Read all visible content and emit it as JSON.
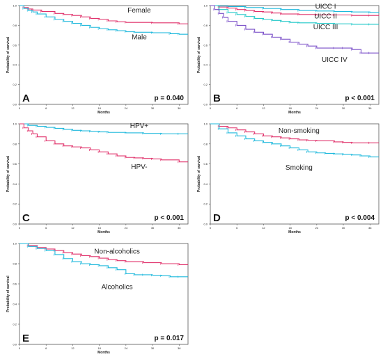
{
  "colors": {
    "pink": "#e0306a",
    "cyan": "#1cb8dc",
    "purple": "#7a4fc8"
  },
  "chart_data": [
    {
      "type": "line",
      "letter": "A",
      "p_value": "p = 0.040",
      "xlabel": "Months",
      "ylabel": "Probability of survival",
      "xlim": [
        0,
        38
      ],
      "ylim": [
        0,
        1
      ],
      "x_ticks": [
        "0",
        "6",
        "12",
        "18",
        "24",
        "30",
        "36"
      ],
      "y_ticks": [
        "0.0",
        "0.2",
        "0.4",
        "0.6",
        "0.8",
        "1.0"
      ],
      "series": [
        {
          "name": "Female",
          "color": "#e0306a",
          "x": [
            0,
            1,
            2,
            3,
            5,
            8,
            10,
            12,
            14,
            16,
            18,
            20,
            22,
            24,
            30,
            36,
            38
          ],
          "y": [
            1.0,
            0.98,
            0.965,
            0.955,
            0.94,
            0.92,
            0.91,
            0.9,
            0.885,
            0.87,
            0.86,
            0.845,
            0.835,
            0.83,
            0.825,
            0.815,
            0.815
          ]
        },
        {
          "name": "Male",
          "color": "#1cb8dc",
          "x": [
            0,
            1,
            2,
            3,
            4,
            6,
            8,
            10,
            12,
            14,
            16,
            18,
            20,
            22,
            24,
            26,
            30,
            34,
            36,
            38
          ],
          "y": [
            1.0,
            0.97,
            0.95,
            0.935,
            0.915,
            0.885,
            0.86,
            0.84,
            0.82,
            0.8,
            0.78,
            0.765,
            0.755,
            0.745,
            0.735,
            0.73,
            0.725,
            0.715,
            0.71,
            0.71
          ]
        }
      ],
      "labels": [
        {
          "text": "Female",
          "x": 27,
          "y": 0.93
        },
        {
          "text": "Male",
          "x": 27,
          "y": 0.66
        }
      ]
    },
    {
      "type": "line",
      "letter": "B",
      "p_value": "p < 0.001",
      "xlabel": "Months",
      "ylabel": "Probability of survival",
      "xlim": [
        0,
        38
      ],
      "ylim": [
        0,
        1
      ],
      "x_ticks": [
        "0",
        "6",
        "12",
        "18",
        "24",
        "30",
        "36"
      ],
      "y_ticks": [
        "0.0",
        "0.2",
        "0.4",
        "0.6",
        "0.8",
        "1.0"
      ],
      "series": [
        {
          "name": "UICC I",
          "color": "#1cb8dc",
          "x": [
            0,
            2,
            4,
            8,
            12,
            16,
            20,
            24,
            28,
            32,
            36,
            38
          ],
          "y": [
            1.0,
            0.995,
            0.99,
            0.98,
            0.97,
            0.96,
            0.95,
            0.945,
            0.94,
            0.935,
            0.93,
            0.925
          ]
        },
        {
          "name": "UICC II",
          "color": "#e0306a",
          "x": [
            0,
            2,
            4,
            6,
            8,
            10,
            12,
            14,
            16,
            20,
            24,
            28,
            32,
            36,
            38
          ],
          "y": [
            1.0,
            0.985,
            0.975,
            0.96,
            0.95,
            0.94,
            0.935,
            0.925,
            0.915,
            0.91,
            0.905,
            0.905,
            0.9,
            0.9,
            0.895
          ]
        },
        {
          "name": "UICC III",
          "color": "#20c8c8",
          "x": [
            0,
            2,
            4,
            6,
            8,
            10,
            12,
            14,
            16,
            18,
            20,
            24,
            28,
            32,
            36,
            38
          ],
          "y": [
            1.0,
            0.96,
            0.93,
            0.91,
            0.89,
            0.87,
            0.86,
            0.85,
            0.84,
            0.83,
            0.825,
            0.82,
            0.815,
            0.81,
            0.81,
            0.81
          ]
        },
        {
          "name": "UICC IV",
          "color": "#7a4fc8",
          "x": [
            0,
            1,
            2,
            3,
            4,
            6,
            8,
            10,
            12,
            14,
            16,
            18,
            20,
            22,
            24,
            28,
            30,
            32,
            34,
            36,
            38
          ],
          "y": [
            1.0,
            0.96,
            0.92,
            0.88,
            0.84,
            0.8,
            0.76,
            0.73,
            0.71,
            0.68,
            0.66,
            0.63,
            0.61,
            0.59,
            0.57,
            0.57,
            0.57,
            0.555,
            0.52,
            0.52,
            0.52
          ]
        }
      ],
      "labels": [
        {
          "text": "UICC I",
          "x": 26,
          "y": 0.97
        },
        {
          "text": "UICC II",
          "x": 26,
          "y": 0.87
        },
        {
          "text": "UICC III",
          "x": 26,
          "y": 0.76
        },
        {
          "text": "UICC IV",
          "x": 28,
          "y": 0.43
        }
      ]
    },
    {
      "type": "line",
      "letter": "C",
      "p_value": "p < 0.001",
      "xlabel": "Months",
      "ylabel": "Probability of survival",
      "xlim": [
        0,
        38
      ],
      "ylim": [
        0,
        1
      ],
      "x_ticks": [
        "0",
        "6",
        "12",
        "18",
        "24",
        "30",
        "36"
      ],
      "y_ticks": [
        "0.0",
        "0.2",
        "0.4",
        "0.6",
        "0.8",
        "1.0"
      ],
      "series": [
        {
          "name": "HPV+",
          "color": "#1cb8dc",
          "x": [
            0,
            2,
            4,
            6,
            8,
            10,
            12,
            14,
            16,
            18,
            20,
            24,
            28,
            32,
            36,
            38
          ],
          "y": [
            1.0,
            0.985,
            0.975,
            0.965,
            0.955,
            0.945,
            0.935,
            0.93,
            0.925,
            0.92,
            0.915,
            0.91,
            0.905,
            0.9,
            0.9,
            0.9
          ]
        },
        {
          "name": "HPV-",
          "color": "#e0306a",
          "x": [
            0,
            1,
            2,
            3,
            4,
            6,
            8,
            10,
            12,
            14,
            16,
            18,
            20,
            22,
            24,
            26,
            28,
            30,
            32,
            36,
            38
          ],
          "y": [
            1.0,
            0.96,
            0.93,
            0.9,
            0.87,
            0.83,
            0.8,
            0.78,
            0.77,
            0.76,
            0.74,
            0.72,
            0.7,
            0.68,
            0.665,
            0.66,
            0.655,
            0.65,
            0.64,
            0.62,
            0.62
          ]
        }
      ],
      "labels": [
        {
          "text": "HPV+",
          "x": 27,
          "y": 0.96
        },
        {
          "text": "HPV-",
          "x": 27,
          "y": 0.55
        }
      ]
    },
    {
      "type": "line",
      "letter": "D",
      "p_value": "p < 0.004",
      "xlabel": "Months",
      "ylabel": "Probability of survival",
      "xlim": [
        0,
        38
      ],
      "ylim": [
        0,
        1
      ],
      "x_ticks": [
        "0",
        "6",
        "12",
        "18",
        "24",
        "30",
        "36"
      ],
      "y_ticks": [
        "0.0",
        "0.2",
        "0.4",
        "0.6",
        "0.8",
        "1.0"
      ],
      "series": [
        {
          "name": "Non-smoking",
          "color": "#e0306a",
          "x": [
            0,
            2,
            4,
            6,
            8,
            10,
            12,
            14,
            16,
            18,
            20,
            22,
            24,
            28,
            30,
            32,
            36,
            38
          ],
          "y": [
            1.0,
            0.975,
            0.96,
            0.94,
            0.92,
            0.9,
            0.88,
            0.87,
            0.86,
            0.85,
            0.84,
            0.835,
            0.83,
            0.82,
            0.815,
            0.81,
            0.81,
            0.81
          ]
        },
        {
          "name": "Smoking",
          "color": "#1cb8dc",
          "x": [
            0,
            2,
            4,
            6,
            8,
            10,
            12,
            14,
            16,
            18,
            20,
            22,
            24,
            26,
            28,
            30,
            32,
            34,
            36,
            38
          ],
          "y": [
            1.0,
            0.95,
            0.91,
            0.88,
            0.85,
            0.83,
            0.815,
            0.8,
            0.78,
            0.76,
            0.74,
            0.72,
            0.71,
            0.705,
            0.7,
            0.695,
            0.69,
            0.68,
            0.67,
            0.67
          ]
        }
      ],
      "labels": [
        {
          "text": "Non-smoking",
          "x": 20,
          "y": 0.91
        },
        {
          "text": "Smoking",
          "x": 20,
          "y": 0.54
        }
      ]
    },
    {
      "type": "line",
      "letter": "E",
      "p_value": "p = 0.017",
      "xlabel": "Months",
      "ylabel": "Probability of survival",
      "xlim": [
        0,
        38
      ],
      "ylim": [
        0,
        1
      ],
      "x_ticks": [
        "0",
        "6",
        "12",
        "18",
        "24",
        "30",
        "36"
      ],
      "y_ticks": [
        "0.0",
        "0.2",
        "0.4",
        "0.6",
        "0.8",
        "1.0"
      ],
      "series": [
        {
          "name": "Non-alcoholics",
          "color": "#e0306a",
          "x": [
            0,
            2,
            4,
            6,
            8,
            10,
            12,
            14,
            16,
            18,
            20,
            22,
            24,
            28,
            32,
            36,
            38
          ],
          "y": [
            1.0,
            0.98,
            0.96,
            0.945,
            0.93,
            0.91,
            0.895,
            0.88,
            0.87,
            0.855,
            0.84,
            0.83,
            0.82,
            0.81,
            0.8,
            0.79,
            0.79
          ]
        },
        {
          "name": "Alcoholics",
          "color": "#1cb8dc",
          "x": [
            0,
            2,
            4,
            6,
            8,
            10,
            12,
            14,
            16,
            18,
            20,
            22,
            24,
            26,
            28,
            30,
            32,
            34,
            36,
            38
          ],
          "y": [
            1.0,
            0.97,
            0.95,
            0.93,
            0.89,
            0.85,
            0.82,
            0.8,
            0.79,
            0.78,
            0.76,
            0.74,
            0.7,
            0.69,
            0.69,
            0.685,
            0.68,
            0.67,
            0.67,
            0.67
          ]
        }
      ],
      "labels": [
        {
          "text": "Non-alcoholics",
          "x": 22,
          "y": 0.9
        },
        {
          "text": "Alcoholics",
          "x": 22,
          "y": 0.55
        }
      ]
    }
  ]
}
